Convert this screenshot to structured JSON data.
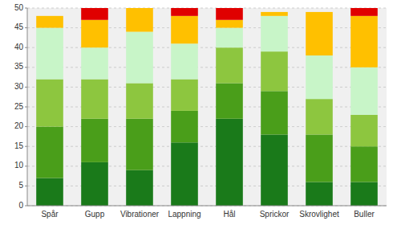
{
  "chart_data": {
    "type": "bar",
    "stacked": true,
    "categories": [
      "Spår",
      "Gupp",
      "Vibrationer",
      "Lappning",
      "Hål",
      "Sprickor",
      "Skrovlighet",
      "Buller"
    ],
    "series": [
      {
        "color": "#1a7a1a",
        "values": [
          7,
          11,
          9,
          16,
          22,
          18,
          6,
          6
        ]
      },
      {
        "color": "#4a9e1a",
        "values": [
          13,
          11,
          13,
          8,
          9,
          11,
          12,
          9
        ]
      },
      {
        "color": "#8dc63f",
        "values": [
          12,
          10,
          9,
          8,
          9,
          10,
          9,
          8
        ]
      },
      {
        "color": "#c8f5c8",
        "values": [
          13,
          8,
          13,
          9,
          5,
          9,
          11,
          12
        ]
      },
      {
        "color": "#ffc000",
        "values": [
          3,
          7,
          6,
          7,
          2,
          1,
          11,
          13
        ]
      },
      {
        "color": "#e00000",
        "values": [
          0,
          3,
          0,
          2,
          3,
          0,
          0,
          2
        ]
      }
    ],
    "ylim": [
      0,
      50
    ],
    "yticks": [
      0,
      5,
      10,
      15,
      20,
      25,
      30,
      35,
      40,
      45,
      50
    ],
    "grid": true
  }
}
